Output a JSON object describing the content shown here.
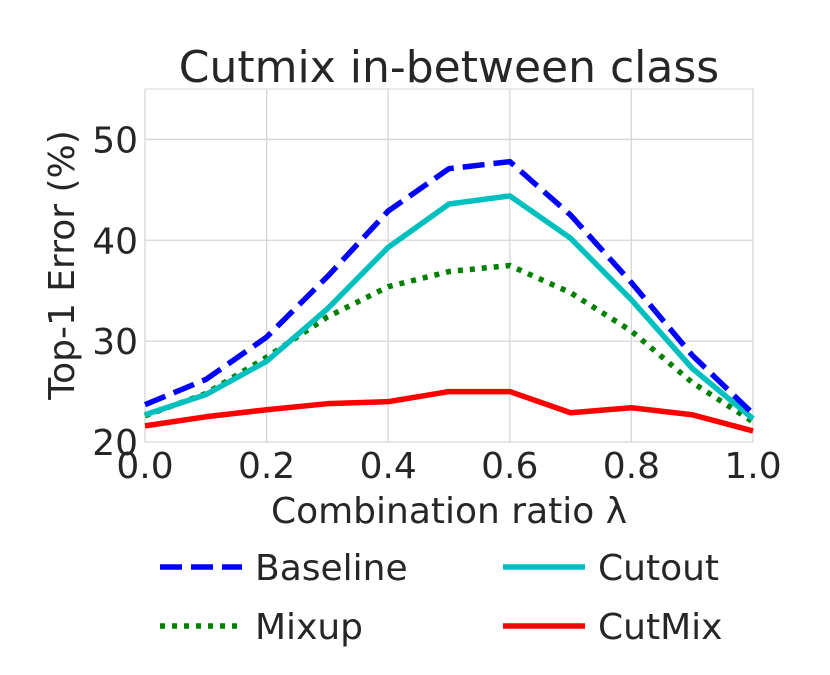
{
  "chart_data": {
    "type": "line",
    "title": "Cutmix in-between class",
    "xlabel": "Combination ratio λ",
    "ylabel": "Top-1 Error (%)",
    "xlim": [
      0.0,
      1.0
    ],
    "ylim": [
      20,
      55
    ],
    "x_ticks": [
      "0.0",
      "0.2",
      "0.4",
      "0.6",
      "0.8",
      "1.0"
    ],
    "y_ticks": [
      "20",
      "30",
      "40",
      "50"
    ],
    "grid": true,
    "legend_position": "bottom",
    "x": [
      0.0,
      0.1,
      0.2,
      0.3,
      0.4,
      0.5,
      0.6,
      0.7,
      0.8,
      0.9,
      1.0
    ],
    "series": [
      {
        "name": "Baseline",
        "color": "#0000ff",
        "style": "dashed",
        "values": [
          23.7,
          26.2,
          30.4,
          36.4,
          42.9,
          47.1,
          47.8,
          42.5,
          35.8,
          28.6,
          22.8
        ]
      },
      {
        "name": "Cutout",
        "color": "#00bfbf",
        "style": "solid",
        "values": [
          22.7,
          24.7,
          28.0,
          33.2,
          39.3,
          43.6,
          44.4,
          40.2,
          34.1,
          27.3,
          22.3
        ]
      },
      {
        "name": "Mixup",
        "color": "#008000",
        "style": "dotted",
        "values": [
          22.6,
          24.8,
          28.4,
          32.4,
          35.4,
          36.9,
          37.5,
          34.8,
          31.0,
          25.9,
          22.0
        ]
      },
      {
        "name": "CutMix",
        "color": "#ff0000",
        "style": "solid",
        "values": [
          21.6,
          22.5,
          23.2,
          23.8,
          24.0,
          25.0,
          25.0,
          22.9,
          23.4,
          22.7,
          21.1
        ]
      }
    ]
  }
}
